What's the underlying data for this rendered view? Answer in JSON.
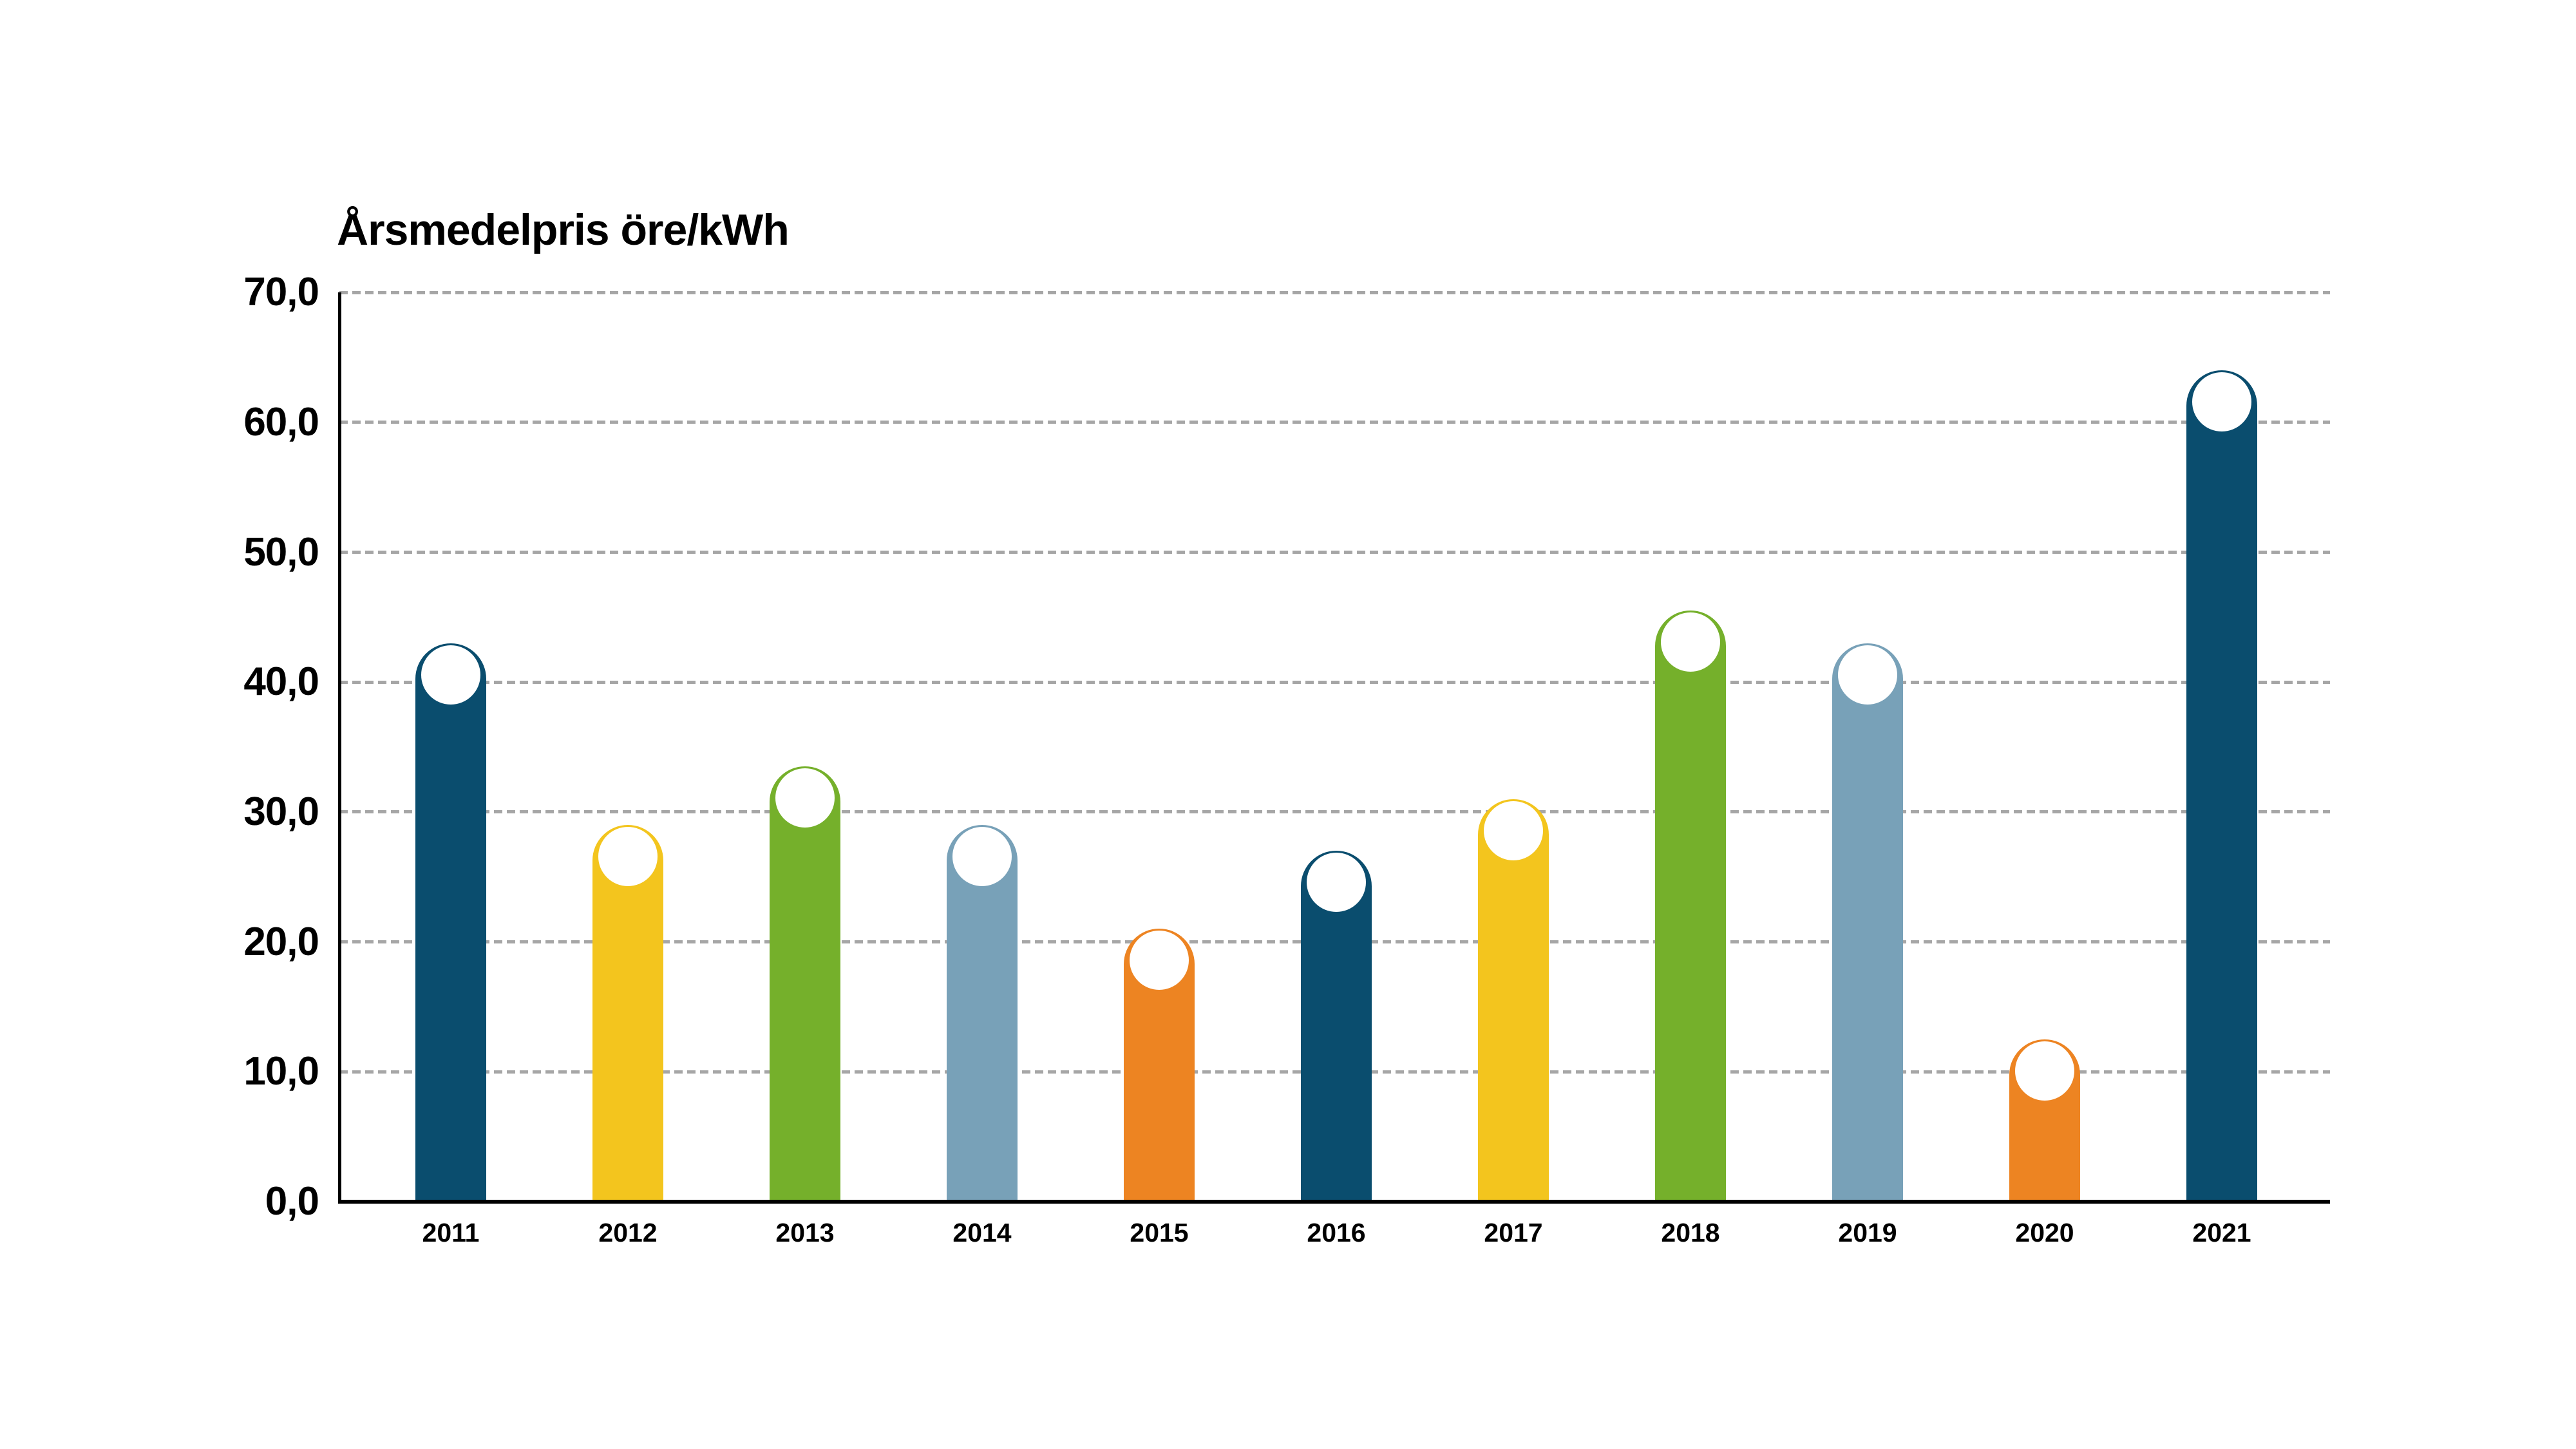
{
  "title": "Årsmedelpris öre/kWh",
  "chart_data": {
    "type": "bar",
    "title": "Årsmedelpris öre/kWh",
    "xlabel": "",
    "ylabel": "öre/kWh",
    "categories": [
      "2011",
      "2012",
      "2013",
      "2014",
      "2015",
      "2016",
      "2017",
      "2018",
      "2019",
      "2020",
      "2021"
    ],
    "values": [
      43.0,
      29.0,
      33.5,
      29.0,
      21.0,
      27.0,
      31.0,
      45.5,
      43.0,
      12.5,
      64.0
    ],
    "ylim": [
      0,
      70
    ],
    "ytick_step": 10,
    "ytick_labels": [
      "0,0",
      "10,0",
      "20,0",
      "30,0",
      "40,0",
      "50,0",
      "60,0",
      "70,0"
    ],
    "grid": "horizontal dashed gray lines, no top/right border",
    "legend": "none",
    "bar_style": "flat-top-free column with semicircular rounded cap and white circle inset at top",
    "bar_colors": [
      "#0a4d6e",
      "#f3c51e",
      "#75b02b",
      "#78a1b8",
      "#ed8422",
      "#0a4d6e",
      "#f3c51e",
      "#75b02b",
      "#78a1b8",
      "#ed8422",
      "#0a4d6e"
    ]
  },
  "palette": {
    "dark_blue": "#0a4d6e",
    "yellow": "#f3c51e",
    "green": "#75b02b",
    "light_blue": "#78a1b8",
    "orange": "#ed8422",
    "gridline_gray": "#a6a6a6",
    "axis_black": "#000000",
    "background": "#ffffff"
  }
}
